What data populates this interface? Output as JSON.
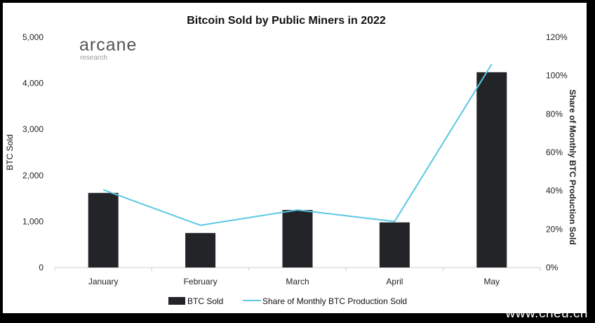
{
  "chart_data": {
    "type": "bar",
    "title": "Bitcoin Sold by Public Miners in 2022",
    "categories": [
      "January",
      "February",
      "March",
      "April",
      "May"
    ],
    "series": [
      {
        "name": "BTC Sold",
        "type": "bar",
        "axis": "left",
        "color": "#222428",
        "values": [
          1620,
          750,
          1250,
          980,
          4240
        ]
      },
      {
        "name": "Share of Monthly BTC Production Sold",
        "type": "line",
        "axis": "right",
        "color": "#5bc8e2",
        "values": [
          40.5,
          22,
          30,
          24,
          106
        ]
      }
    ],
    "ylabel": "BTC Sold",
    "ylim": [
      0,
      5000
    ],
    "yticks": [
      "0",
      "1,000",
      "2,000",
      "3,000",
      "4,000",
      "5,000"
    ],
    "y2label": "Share of Monthly BTC Production Sold",
    "y2lim": [
      0,
      120
    ],
    "y2ticks": [
      "0%",
      "20%",
      "40%",
      "60%",
      "80%",
      "100%",
      "120%"
    ],
    "grid": false,
    "legend": "bottom"
  },
  "logo": {
    "main": "arcane",
    "sub": "research"
  },
  "watermark": "www.cheu.cn"
}
